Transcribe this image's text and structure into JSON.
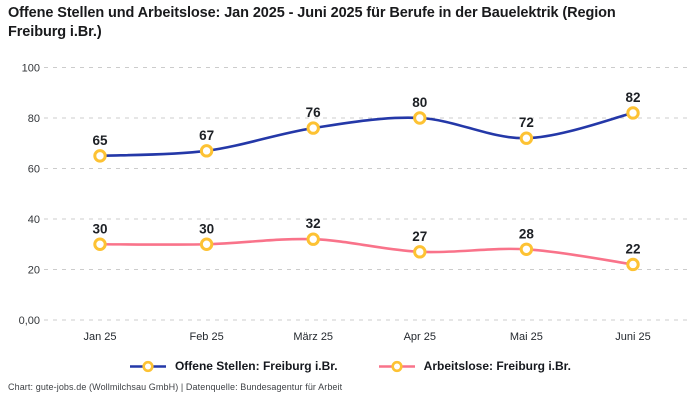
{
  "header": {
    "title": "Offene Stellen und Arbeitslose: Jan 2025 - Juni 2025 für Berufe in der Bauelektrik (Region Freiburg i.Br.)"
  },
  "chart_data": {
    "type": "line",
    "title": "Offene Stellen und Arbeitslose: Jan 2025 - Juni 2025 für Berufe in der Bauelektrik (Region Freiburg i.Br.)",
    "categories": [
      "Jan 25",
      "Feb 25",
      "März 25",
      "Apr 25",
      "Mai 25",
      "Juni 25"
    ],
    "series": [
      {
        "name": "Offene Stellen: Freiburg i.Br.",
        "values": [
          65,
          67,
          76,
          80,
          72,
          82
        ],
        "color": "#2438a8"
      },
      {
        "name": "Arbeitslose: Freiburg i.Br.",
        "values": [
          30,
          30,
          32,
          27,
          28,
          22
        ],
        "color": "#f9738a"
      }
    ],
    "marker": {
      "fill": "#ffffff",
      "stroke": "#fdc233"
    },
    "y_axis": {
      "tick_values": [
        0,
        20,
        40,
        60,
        80,
        100
      ],
      "tick_labels": [
        "0,00",
        "20",
        "40",
        "60",
        "80",
        "100"
      ],
      "range": [
        0,
        100
      ]
    },
    "grid": {
      "style": "dashed",
      "color": "#cccccc"
    },
    "legend_position": "bottom",
    "value_label_color": "#1d2025",
    "tick_label_color": "#33363a"
  },
  "footer": {
    "credit": "Chart: gute-jobs.de (Wollmilchsau GmbH) | Datenquelle: Bundesagentur für Arbeit"
  }
}
